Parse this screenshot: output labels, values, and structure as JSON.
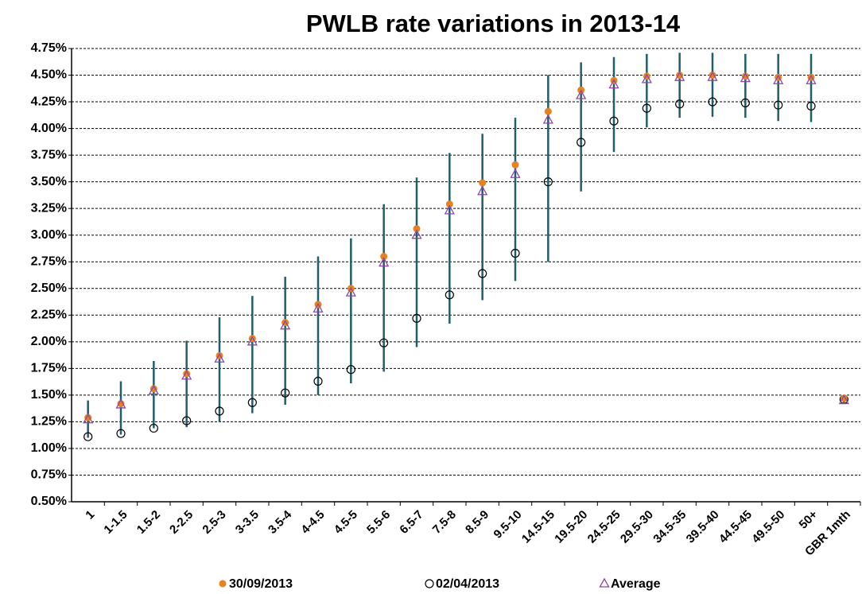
{
  "chart_data": {
    "type": "range-markers",
    "title": "PWLB rate variations in 2013-14",
    "categories": [
      "1",
      "1-1.5",
      "1.5-2",
      "2-2.5",
      "2.5-3",
      "3-3.5",
      "3.5-4",
      "4-4.5",
      "4.5-5",
      "5.5-6",
      "6.5-7",
      "7.5-8",
      "8.5-9",
      "9.5-10",
      "14.5-15",
      "19.5-20",
      "24.5-25",
      "29.5-30",
      "34.5-35",
      "39.5-40",
      "44.5-45",
      "49.5-50",
      "50+",
      "GBR 1mth"
    ],
    "series": [
      {
        "name": "30/09/2013",
        "color": "#e8821e",
        "marker": "dot",
        "values": [
          1.29,
          1.42,
          1.56,
          1.7,
          1.87,
          2.03,
          2.18,
          2.35,
          2.5,
          2.8,
          3.06,
          3.29,
          3.49,
          3.66,
          4.16,
          4.36,
          4.45,
          4.49,
          4.5,
          4.5,
          4.49,
          4.48,
          4.48,
          1.47
        ]
      },
      {
        "name": "02/04/2013",
        "color": "#000000",
        "marker": "circle",
        "values": [
          1.11,
          1.14,
          1.19,
          1.26,
          1.35,
          1.43,
          1.52,
          1.63,
          1.74,
          1.99,
          2.22,
          2.44,
          2.64,
          2.83,
          3.5,
          3.87,
          4.07,
          4.19,
          4.23,
          4.25,
          4.24,
          4.22,
          4.21,
          1.46
        ]
      },
      {
        "name": "Average",
        "color": "#8e44ad",
        "marker": "triangle",
        "values": [
          1.27,
          1.41,
          1.54,
          1.68,
          1.84,
          2.0,
          2.15,
          2.31,
          2.46,
          2.74,
          3.0,
          3.23,
          3.41,
          3.57,
          4.08,
          4.31,
          4.41,
          4.46,
          4.48,
          4.48,
          4.47,
          4.45,
          4.45,
          1.45
        ]
      }
    ],
    "ranges": {
      "color": "#1f5f6b",
      "low": [
        1.1,
        1.13,
        1.19,
        1.2,
        1.25,
        1.33,
        1.41,
        1.5,
        1.61,
        1.72,
        1.95,
        2.17,
        2.39,
        2.57,
        2.75,
        3.41,
        3.78,
        4.01,
        4.1,
        4.11,
        4.1,
        4.07,
        4.06,
        1.43
      ],
      "high": [
        1.45,
        1.63,
        1.82,
        2.01,
        2.23,
        2.43,
        2.61,
        2.8,
        2.97,
        3.29,
        3.54,
        3.77,
        3.95,
        4.1,
        4.5,
        4.62,
        4.67,
        4.7,
        4.71,
        4.71,
        4.7,
        4.7,
        4.7,
        1.49
      ]
    },
    "ylim": [
      0.5,
      4.75
    ],
    "yticks": [
      {
        "value": 0.5,
        "label": "0.50%"
      },
      {
        "value": 0.75,
        "label": "0.75%"
      },
      {
        "value": 1.0,
        "label": "1.00%"
      },
      {
        "value": 1.25,
        "label": "1.25%"
      },
      {
        "value": 1.5,
        "label": "1.50%"
      },
      {
        "value": 1.75,
        "label": "1.75%"
      },
      {
        "value": 2.0,
        "label": "2.00%"
      },
      {
        "value": 2.25,
        "label": "2.25%"
      },
      {
        "value": 2.5,
        "label": "2.50%"
      },
      {
        "value": 2.75,
        "label": "2.75%"
      },
      {
        "value": 3.0,
        "label": "3.00%"
      },
      {
        "value": 3.25,
        "label": "3.25%"
      },
      {
        "value": 3.5,
        "label": "3.50%"
      },
      {
        "value": 3.75,
        "label": "3.75%"
      },
      {
        "value": 4.0,
        "label": "4.00%"
      },
      {
        "value": 4.25,
        "label": "4.25%"
      },
      {
        "value": 4.5,
        "label": "4.50%"
      },
      {
        "value": 4.75,
        "label": "4.75%"
      }
    ],
    "grid": true,
    "legend": "bottom"
  }
}
